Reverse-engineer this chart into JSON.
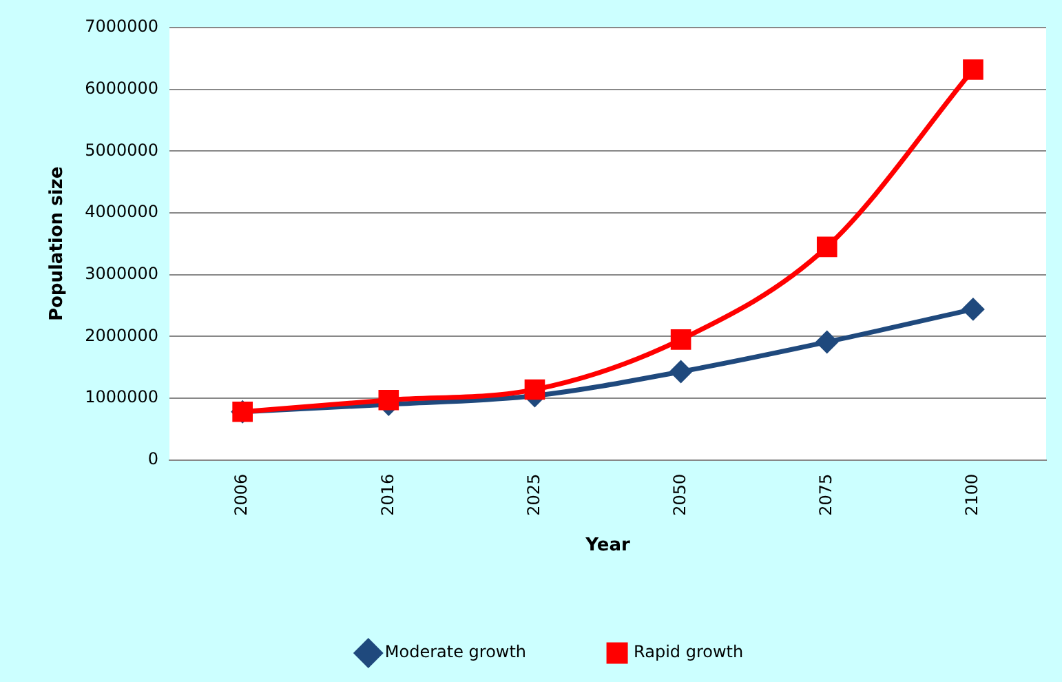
{
  "chart_data": {
    "type": "line",
    "xlabel": "Year",
    "ylabel": "Population size",
    "categories": [
      "2006",
      "2016",
      "2025",
      "2050",
      "2075",
      "2100"
    ],
    "series": [
      {
        "name": "Moderate growth",
        "color": "#1f497d",
        "marker": "diamond",
        "values": [
          780000,
          900000,
          1040000,
          1430000,
          1910000,
          2440000
        ]
      },
      {
        "name": "Rapid growth",
        "color": "#ff0000",
        "marker": "square",
        "values": [
          780000,
          970000,
          1140000,
          1950000,
          3450000,
          6320000
        ]
      }
    ],
    "ylim": [
      0,
      7000000
    ],
    "yticks": [
      0,
      1000000,
      2000000,
      3000000,
      4000000,
      5000000,
      6000000,
      7000000
    ],
    "grid": "y",
    "legend": "bottom"
  }
}
